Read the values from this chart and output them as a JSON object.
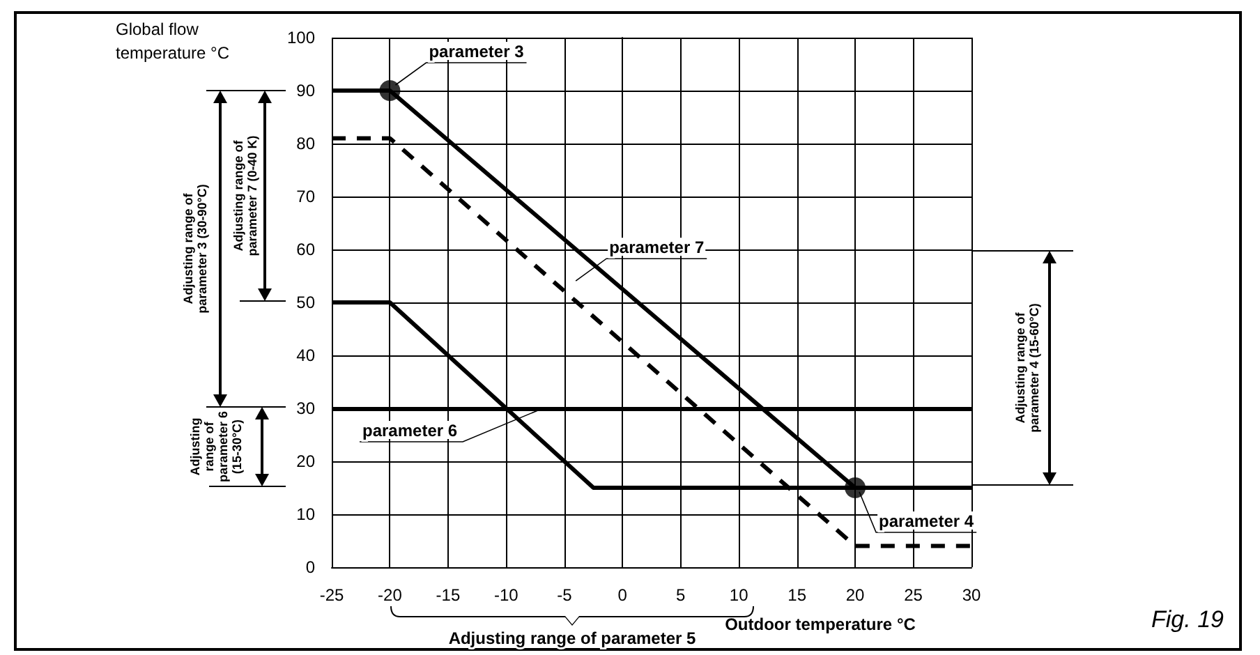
{
  "chart_data": {
    "type": "line",
    "xlabel": "Outdoor temperature °C",
    "ylabel": "Global flow temperature °C",
    "xlim": [
      -25,
      30
    ],
    "ylim": [
      0,
      100
    ],
    "xticks": [
      -25,
      -20,
      -15,
      -10,
      -5,
      0,
      5,
      10,
      15,
      20,
      25,
      30
    ],
    "yticks": [
      0,
      10,
      20,
      30,
      40,
      50,
      60,
      70,
      80,
      90,
      100
    ],
    "grid": true,
    "series": [
      {
        "color": "#000000",
        "x": [
          -25,
          -20,
          20,
          30
        ],
        "values": [
          90,
          90,
          15,
          15
        ],
        "marker": "none",
        "line_style": "solid"
      },
      {
        "color": "#000000",
        "x": [
          -25,
          -20,
          20,
          30
        ],
        "values": [
          81,
          81,
          4,
          4
        ],
        "marker": "none",
        "line_style": "dashed"
      },
      {
        "color": "#000000",
        "x": [
          -25,
          -20,
          -2.5,
          30
        ],
        "values": [
          50,
          50,
          15,
          15
        ],
        "marker": "none",
        "line_style": "solid"
      },
      {
        "type": "scatter",
        "color": "#000000",
        "x": [
          -20,
          20
        ],
        "values": [
          90,
          15
        ],
        "marker": "circle"
      }
    ],
    "ref_lines": [
      {
        "axis": "y",
        "value": 30,
        "label": "parameter 6",
        "color": "#000000"
      }
    ],
    "annotations": [
      {
        "text": "parameter 3",
        "x": -20,
        "y": 90
      },
      {
        "text": "parameter 7",
        "x": -4.5,
        "y": 53
      },
      {
        "text": "parameter 4",
        "x": 20,
        "y": 15
      },
      "Adjusting range of parameter 3 (30-90°C)",
      "Adjusting range of parameter 7 (0-40 K)",
      "Adjusting range of parameter 6 (15-30°C)",
      "Adjusting range of parameter 4 (15-60°C)",
      "Adjusting range of parameter 5",
      "Fig. 19"
    ]
  }
}
